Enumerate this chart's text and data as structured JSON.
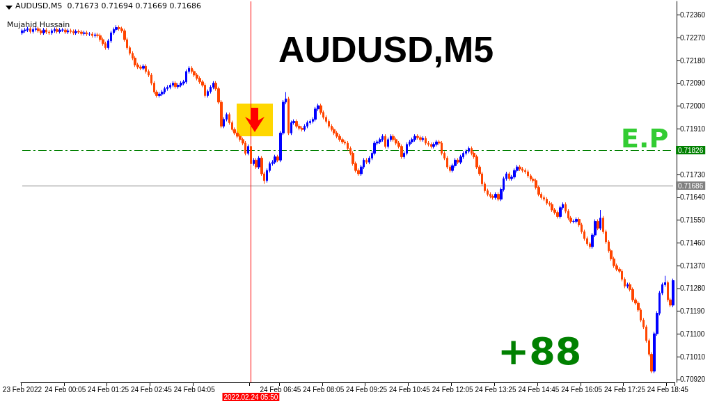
{
  "chart_data": {
    "type": "candlestick",
    "title": "AUDUSD,M5",
    "annotations": [
      "AUDUSD,M5  0.71673 0.71694 0.71669 0.71686",
      "Mujahid Hussain",
      "E.P",
      "+88"
    ],
    "categories": [
      "23 Feb 2022",
      null,
      null,
      null,
      null,
      null,
      null,
      null,
      null,
      null,
      null,
      null,
      null,
      null,
      null,
      null,
      "24 Feb 00:05",
      null,
      null,
      null,
      null,
      null,
      null,
      null,
      null,
      null,
      null,
      null,
      null,
      null,
      null,
      null,
      "24 Feb 01:25",
      null,
      null,
      null,
      null,
      null,
      null,
      null,
      null,
      null,
      null,
      null,
      null,
      null,
      null,
      null,
      "24 Feb 02:45",
      null,
      null,
      null,
      null,
      null,
      null,
      null,
      null,
      null,
      null,
      null,
      null,
      null,
      null,
      null,
      "24 Feb 04:05",
      null,
      null,
      null,
      null,
      null,
      null,
      null,
      null,
      null,
      null,
      null,
      null,
      null,
      null,
      null,
      null,
      null,
      null,
      null,
      null,
      "2022.02.24 05:50",
      null,
      null,
      null,
      null,
      null,
      null,
      null,
      null,
      null,
      null,
      "24 Feb 06:45",
      null,
      null,
      null,
      null,
      null,
      null,
      null,
      null,
      null,
      null,
      null,
      null,
      null,
      null,
      null,
      "24 Feb 08:05",
      null,
      null,
      null,
      null,
      null,
      null,
      null,
      null,
      null,
      null,
      null,
      null,
      null,
      null,
      null,
      "24 Feb 09:25",
      null,
      null,
      null,
      null,
      null,
      null,
      null,
      null,
      null,
      null,
      null,
      null,
      null,
      null,
      null,
      "24 Feb 10:45",
      null,
      null,
      null,
      null,
      null,
      null,
      null,
      null,
      null,
      null,
      null,
      null,
      null,
      null,
      null,
      "24 Feb 12:05",
      null,
      null,
      null,
      null,
      null,
      null,
      null,
      null,
      null,
      null,
      null,
      null,
      null,
      null,
      null,
      "24 Feb 13:25",
      null,
      null,
      null,
      null,
      null,
      null,
      null,
      null,
      null,
      null,
      null,
      null,
      null,
      null,
      null,
      "24 Feb 14:45",
      null,
      null,
      null,
      null,
      null,
      null,
      null,
      null,
      null,
      null,
      null,
      null,
      null,
      null,
      null,
      "24 Feb 16:05",
      null,
      null,
      null,
      null,
      null,
      null,
      null,
      null,
      null,
      null,
      null,
      null,
      null,
      null,
      null,
      "24 Feb 17:25",
      null,
      null,
      null,
      null,
      null,
      null,
      null,
      null,
      null,
      null,
      null,
      null,
      null,
      null,
      null,
      "24 Feb 18:45",
      null,
      null
    ],
    "ylim": [
      0.70909,
      0.72414
    ],
    "yticks": [
      {
        "value": 0.7236,
        "label": "0.72360"
      },
      {
        "value": 0.7227,
        "label": "0.72270"
      },
      {
        "value": 0.7218,
        "label": "0.72180"
      },
      {
        "value": 0.7209,
        "label": "0.72090"
      },
      {
        "value": 0.72,
        "label": "0.72000"
      },
      {
        "value": 0.7191,
        "label": "0.71910"
      },
      {
        "value": 0.7182,
        "label": null
      },
      {
        "value": 0.7173,
        "label": "0.71730"
      },
      {
        "value": 0.7164,
        "label": "0.71640"
      },
      {
        "value": 0.7155,
        "label": "0.71550"
      },
      {
        "value": 0.7146,
        "label": "0.71460"
      },
      {
        "value": 0.7137,
        "label": "0.71370"
      },
      {
        "value": 0.7128,
        "label": "0.71280"
      },
      {
        "value": 0.7119,
        "label": "0.71190"
      },
      {
        "value": 0.711,
        "label": "0.71100"
      },
      {
        "value": 0.7101,
        "label": "0.71010"
      },
      {
        "value": 0.7092,
        "label": "0.70920"
      }
    ],
    "ref_lines": [
      {
        "axis": "y",
        "value": 0.71826,
        "label": "0.71826",
        "color": "#008000",
        "line_style": "dashed"
      },
      {
        "axis": "y",
        "value": 0.71686,
        "label": "0.71686",
        "color": "#808080",
        "line_style": "solid"
      },
      {
        "axis": "x",
        "value": "2022.02.24 05:50",
        "label": null,
        "color": "#ff0000",
        "line_style": "solid"
      }
    ],
    "ohlc": [
      [
        0.7229,
        0.72306,
        0.72282,
        0.72298
      ],
      [
        0.72298,
        0.72309,
        0.7229,
        0.72301
      ],
      [
        0.72301,
        0.72314,
        0.72293,
        0.72306
      ],
      [
        0.72306,
        0.72314,
        0.72287,
        0.72295
      ],
      [
        0.72295,
        0.72311,
        0.72287,
        0.72303
      ],
      [
        0.72303,
        0.72314,
        0.72295,
        0.72306
      ],
      [
        0.72306,
        0.72314,
        0.7229,
        0.72298
      ],
      [
        0.72298,
        0.72306,
        0.72282,
        0.7229
      ],
      [
        0.7229,
        0.72309,
        0.72282,
        0.72301
      ],
      [
        0.72301,
        0.72309,
        0.72285,
        0.72293
      ],
      [
        0.72293,
        0.72301,
        0.72282,
        0.7229
      ],
      [
        0.7229,
        0.72306,
        0.72282,
        0.72298
      ],
      [
        0.72298,
        0.72311,
        0.7229,
        0.72303
      ],
      [
        0.72303,
        0.72311,
        0.72287,
        0.72295
      ],
      [
        0.72295,
        0.72309,
        0.72287,
        0.72301
      ],
      [
        0.72301,
        0.72309,
        0.72293,
        0.72301
      ],
      [
        0.72301,
        0.72309,
        0.72285,
        0.72293
      ],
      [
        0.72293,
        0.72306,
        0.72285,
        0.72298
      ],
      [
        0.72298,
        0.72306,
        0.72287,
        0.72295
      ],
      [
        0.72295,
        0.72303,
        0.72282,
        0.7229
      ],
      [
        0.7229,
        0.72303,
        0.72282,
        0.72295
      ],
      [
        0.72295,
        0.72303,
        0.72285,
        0.72293
      ],
      [
        0.72293,
        0.72301,
        0.72279,
        0.72287
      ],
      [
        0.72287,
        0.72298,
        0.72279,
        0.7229
      ],
      [
        0.7229,
        0.72298,
        0.72277,
        0.72285
      ],
      [
        0.72285,
        0.72293,
        0.72277,
        0.72285
      ],
      [
        0.72285,
        0.72293,
        0.72271,
        0.72279
      ],
      [
        0.72279,
        0.7229,
        0.72271,
        0.72282
      ],
      [
        0.72282,
        0.7229,
        0.72271,
        0.72279
      ],
      [
        0.72279,
        0.72287,
        0.72255,
        0.72263
      ],
      [
        0.72263,
        0.72271,
        0.72239,
        0.72247
      ],
      [
        0.72247,
        0.72255,
        0.72223,
        0.72231
      ],
      [
        0.72231,
        0.72266,
        0.72223,
        0.72258
      ],
      [
        0.72258,
        0.72298,
        0.7225,
        0.7229
      ],
      [
        0.7229,
        0.72311,
        0.72282,
        0.72303
      ],
      [
        0.72303,
        0.7232,
        0.72295,
        0.72311
      ],
      [
        0.72311,
        0.72319,
        0.72298,
        0.72306
      ],
      [
        0.72306,
        0.72314,
        0.7229,
        0.72298
      ],
      [
        0.72298,
        0.72306,
        0.72255,
        0.72263
      ],
      [
        0.72263,
        0.72271,
        0.72223,
        0.72231
      ],
      [
        0.72231,
        0.72239,
        0.72201,
        0.72209
      ],
      [
        0.72209,
        0.72217,
        0.72182,
        0.7219
      ],
      [
        0.7219,
        0.72198,
        0.72155,
        0.72163
      ],
      [
        0.72163,
        0.72171,
        0.72147,
        0.72155
      ],
      [
        0.72155,
        0.72163,
        0.72142,
        0.7215
      ],
      [
        0.7215,
        0.72166,
        0.72142,
        0.72158
      ],
      [
        0.72158,
        0.72166,
        0.72129,
        0.72137
      ],
      [
        0.72137,
        0.72145,
        0.72115,
        0.72123
      ],
      [
        0.72123,
        0.72131,
        0.72083,
        0.72091
      ],
      [
        0.72091,
        0.72099,
        0.72048,
        0.72056
      ],
      [
        0.72056,
        0.72064,
        0.72034,
        0.72042
      ],
      [
        0.72042,
        0.72056,
        0.72034,
        0.72048
      ],
      [
        0.72048,
        0.72064,
        0.7204,
        0.72056
      ],
      [
        0.72056,
        0.72077,
        0.72048,
        0.72069
      ],
      [
        0.72069,
        0.72083,
        0.72061,
        0.72075
      ],
      [
        0.72075,
        0.72091,
        0.72067,
        0.72083
      ],
      [
        0.72083,
        0.72099,
        0.72075,
        0.72091
      ],
      [
        0.72091,
        0.72099,
        0.72069,
        0.72077
      ],
      [
        0.72077,
        0.72091,
        0.72069,
        0.72083
      ],
      [
        0.72083,
        0.72099,
        0.72075,
        0.72091
      ],
      [
        0.72091,
        0.72104,
        0.72083,
        0.72096
      ],
      [
        0.72096,
        0.72145,
        0.72088,
        0.72137
      ],
      [
        0.72137,
        0.72158,
        0.72129,
        0.7215
      ],
      [
        0.7215,
        0.72158,
        0.72129,
        0.72137
      ],
      [
        0.72137,
        0.72145,
        0.72115,
        0.72123
      ],
      [
        0.72123,
        0.72131,
        0.72102,
        0.7211
      ],
      [
        0.7211,
        0.72118,
        0.72088,
        0.72096
      ],
      [
        0.72096,
        0.72104,
        0.72075,
        0.72083
      ],
      [
        0.72083,
        0.72091,
        0.72034,
        0.72042
      ],
      [
        0.72042,
        0.72066,
        0.72034,
        0.72058
      ],
      [
        0.72058,
        0.72083,
        0.7205,
        0.72075
      ],
      [
        0.72075,
        0.72099,
        0.72067,
        0.72091
      ],
      [
        0.72091,
        0.72099,
        0.72061,
        0.72069
      ],
      [
        0.72069,
        0.72077,
        0.72008,
        0.72016
      ],
      [
        0.72016,
        0.72024,
        0.71913,
        0.71921
      ],
      [
        0.71921,
        0.71956,
        0.71913,
        0.71948
      ],
      [
        0.71948,
        0.71975,
        0.7194,
        0.71967
      ],
      [
        0.71967,
        0.71975,
        0.71927,
        0.71935
      ],
      [
        0.71935,
        0.71943,
        0.719,
        0.71908
      ],
      [
        0.71908,
        0.71916,
        0.71886,
        0.71894
      ],
      [
        0.71894,
        0.71902,
        0.71873,
        0.71881
      ],
      [
        0.71881,
        0.71889,
        0.7186,
        0.71868
      ],
      [
        0.71868,
        0.71876,
        0.71846,
        0.71854
      ],
      [
        0.71854,
        0.71862,
        0.71806,
        0.71814
      ],
      [
        0.71814,
        0.71849,
        0.71806,
        0.71841
      ],
      [
        0.71841,
        0.71849,
        0.71765,
        0.71773
      ],
      [
        0.71773,
        0.71795,
        0.71765,
        0.71787
      ],
      [
        0.71787,
        0.71795,
        0.71752,
        0.7176
      ],
      [
        0.7176,
        0.71803,
        0.71752,
        0.71795
      ],
      [
        0.71795,
        0.71803,
        0.71725,
        0.71733
      ],
      [
        0.71733,
        0.71741,
        0.71693,
        0.71706
      ],
      [
        0.71706,
        0.71754,
        0.71698,
        0.71746
      ],
      [
        0.71746,
        0.71781,
        0.71738,
        0.71773
      ],
      [
        0.71773,
        0.71787,
        0.71765,
        0.71779
      ],
      [
        0.71779,
        0.71808,
        0.71771,
        0.718
      ],
      [
        0.718,
        0.71808,
        0.71779,
        0.71787
      ],
      [
        0.71787,
        0.71902,
        0.71779,
        0.71894
      ],
      [
        0.71894,
        0.72024,
        0.71886,
        0.72016
      ],
      [
        0.72016,
        0.72056,
        0.72008,
        0.72029
      ],
      [
        0.72029,
        0.72037,
        0.71886,
        0.71894
      ],
      [
        0.71894,
        0.71943,
        0.71886,
        0.71935
      ],
      [
        0.71935,
        0.71948,
        0.71927,
        0.7194
      ],
      [
        0.7194,
        0.71948,
        0.71913,
        0.71921
      ],
      [
        0.71921,
        0.71929,
        0.71905,
        0.71913
      ],
      [
        0.71913,
        0.71921,
        0.719,
        0.71908
      ],
      [
        0.71908,
        0.71929,
        0.719,
        0.71921
      ],
      [
        0.71921,
        0.71943,
        0.71913,
        0.71935
      ],
      [
        0.71935,
        0.71948,
        0.71927,
        0.7194
      ],
      [
        0.7194,
        0.71956,
        0.71932,
        0.71948
      ],
      [
        0.71948,
        0.71997,
        0.7194,
        0.71989
      ],
      [
        0.71989,
        0.7201,
        0.71981,
        0.72002
      ],
      [
        0.72002,
        0.7201,
        0.71967,
        0.71975
      ],
      [
        0.71975,
        0.71983,
        0.71948,
        0.71956
      ],
      [
        0.71956,
        0.71964,
        0.71932,
        0.7194
      ],
      [
        0.7194,
        0.71948,
        0.71913,
        0.71921
      ],
      [
        0.71921,
        0.71929,
        0.719,
        0.71908
      ],
      [
        0.71908,
        0.71916,
        0.71886,
        0.71894
      ],
      [
        0.71894,
        0.71902,
        0.71873,
        0.71881
      ],
      [
        0.71881,
        0.71889,
        0.7186,
        0.71868
      ],
      [
        0.71868,
        0.71876,
        0.71851,
        0.71859
      ],
      [
        0.71859,
        0.71867,
        0.71846,
        0.71854
      ],
      [
        0.71854,
        0.71862,
        0.71825,
        0.71833
      ],
      [
        0.71833,
        0.71841,
        0.71806,
        0.71814
      ],
      [
        0.71814,
        0.71822,
        0.71765,
        0.71773
      ],
      [
        0.71773,
        0.71781,
        0.71738,
        0.71746
      ],
      [
        0.71746,
        0.71754,
        0.71725,
        0.71733
      ],
      [
        0.71733,
        0.71768,
        0.71725,
        0.7176
      ],
      [
        0.7176,
        0.71795,
        0.71752,
        0.71787
      ],
      [
        0.71787,
        0.71795,
        0.71771,
        0.71779
      ],
      [
        0.71779,
        0.71803,
        0.71771,
        0.71795
      ],
      [
        0.71795,
        0.71822,
        0.71787,
        0.71814
      ],
      [
        0.71814,
        0.71862,
        0.71806,
        0.71854
      ],
      [
        0.71854,
        0.71867,
        0.71846,
        0.71859
      ],
      [
        0.71859,
        0.71876,
        0.71851,
        0.71868
      ],
      [
        0.71868,
        0.71889,
        0.7186,
        0.71881
      ],
      [
        0.71881,
        0.71889,
        0.71833,
        0.71841
      ],
      [
        0.71841,
        0.71876,
        0.71833,
        0.71868
      ],
      [
        0.71868,
        0.71889,
        0.7186,
        0.71881
      ],
      [
        0.71881,
        0.71889,
        0.7186,
        0.71868
      ],
      [
        0.71868,
        0.71876,
        0.71846,
        0.71854
      ],
      [
        0.71854,
        0.71862,
        0.71833,
        0.71841
      ],
      [
        0.71841,
        0.71849,
        0.71792,
        0.718
      ],
      [
        0.718,
        0.71822,
        0.71792,
        0.71814
      ],
      [
        0.71814,
        0.71857,
        0.71806,
        0.71849
      ],
      [
        0.71849,
        0.71867,
        0.71841,
        0.71859
      ],
      [
        0.71859,
        0.71876,
        0.71851,
        0.71868
      ],
      [
        0.71868,
        0.71889,
        0.7186,
        0.71881
      ],
      [
        0.71881,
        0.71889,
        0.71868,
        0.71876
      ],
      [
        0.71876,
        0.71884,
        0.7186,
        0.71868
      ],
      [
        0.71868,
        0.71881,
        0.7186,
        0.71873
      ],
      [
        0.71873,
        0.71881,
        0.71846,
        0.71854
      ],
      [
        0.71854,
        0.71862,
        0.71841,
        0.71849
      ],
      [
        0.71849,
        0.71857,
        0.71833,
        0.71841
      ],
      [
        0.71841,
        0.71857,
        0.71833,
        0.71849
      ],
      [
        0.71849,
        0.71867,
        0.71841,
        0.71859
      ],
      [
        0.71859,
        0.71867,
        0.71846,
        0.71854
      ],
      [
        0.71854,
        0.71862,
        0.71806,
        0.71814
      ],
      [
        0.71814,
        0.71822,
        0.71787,
        0.71795
      ],
      [
        0.71795,
        0.71803,
        0.71752,
        0.7176
      ],
      [
        0.7176,
        0.71768,
        0.71738,
        0.71746
      ],
      [
        0.71746,
        0.71773,
        0.71738,
        0.71765
      ],
      [
        0.71765,
        0.71795,
        0.71757,
        0.71787
      ],
      [
        0.71787,
        0.71795,
        0.71771,
        0.71779
      ],
      [
        0.71779,
        0.71808,
        0.71771,
        0.718
      ],
      [
        0.718,
        0.71822,
        0.71792,
        0.71814
      ],
      [
        0.71814,
        0.7183,
        0.71806,
        0.71822
      ],
      [
        0.71822,
        0.71841,
        0.71814,
        0.71833
      ],
      [
        0.71833,
        0.71841,
        0.71806,
        0.71814
      ],
      [
        0.71814,
        0.71822,
        0.71792,
        0.718
      ],
      [
        0.718,
        0.71808,
        0.71752,
        0.7176
      ],
      [
        0.7176,
        0.71768,
        0.71725,
        0.71733
      ],
      [
        0.71733,
        0.71741,
        0.71685,
        0.71693
      ],
      [
        0.71693,
        0.71701,
        0.71658,
        0.71666
      ],
      [
        0.71666,
        0.71674,
        0.71644,
        0.71652
      ],
      [
        0.71652,
        0.7166,
        0.71636,
        0.71644
      ],
      [
        0.71644,
        0.71652,
        0.71631,
        0.71639
      ],
      [
        0.71639,
        0.7166,
        0.71631,
        0.71652
      ],
      [
        0.71652,
        0.7166,
        0.71625,
        0.71633
      ],
      [
        0.71633,
        0.71679,
        0.71625,
        0.71671
      ],
      [
        0.71671,
        0.71722,
        0.71663,
        0.71714
      ],
      [
        0.71714,
        0.71741,
        0.71706,
        0.71733
      ],
      [
        0.71733,
        0.71741,
        0.71706,
        0.71714
      ],
      [
        0.71714,
        0.71728,
        0.71706,
        0.7172
      ],
      [
        0.7172,
        0.71754,
        0.71712,
        0.71746
      ],
      [
        0.71746,
        0.71768,
        0.71738,
        0.7176
      ],
      [
        0.7176,
        0.71768,
        0.71744,
        0.71752
      ],
      [
        0.71752,
        0.7176,
        0.71738,
        0.71746
      ],
      [
        0.71746,
        0.71754,
        0.71733,
        0.71741
      ],
      [
        0.71741,
        0.71749,
        0.71717,
        0.71725
      ],
      [
        0.71725,
        0.71733,
        0.71704,
        0.71712
      ],
      [
        0.71712,
        0.7172,
        0.71698,
        0.71706
      ],
      [
        0.71706,
        0.71714,
        0.71671,
        0.71679
      ],
      [
        0.71679,
        0.71687,
        0.71644,
        0.71652
      ],
      [
        0.71652,
        0.7166,
        0.71631,
        0.71639
      ],
      [
        0.71639,
        0.71647,
        0.71625,
        0.71633
      ],
      [
        0.71633,
        0.71641,
        0.71609,
        0.71617
      ],
      [
        0.71617,
        0.71625,
        0.71604,
        0.71612
      ],
      [
        0.71612,
        0.7162,
        0.71582,
        0.7159
      ],
      [
        0.7159,
        0.71598,
        0.71572,
        0.7158
      ],
      [
        0.7158,
        0.71588,
        0.71556,
        0.71564
      ],
      [
        0.71564,
        0.71607,
        0.71556,
        0.71599
      ],
      [
        0.71599,
        0.7162,
        0.71591,
        0.71612
      ],
      [
        0.71612,
        0.7162,
        0.71577,
        0.71585
      ],
      [
        0.71585,
        0.71593,
        0.7155,
        0.71558
      ],
      [
        0.71558,
        0.71566,
        0.71537,
        0.71545
      ],
      [
        0.71545,
        0.71553,
        0.71537,
        0.71545
      ],
      [
        0.71545,
        0.71561,
        0.71537,
        0.71553
      ],
      [
        0.71553,
        0.71561,
        0.71523,
        0.71531
      ],
      [
        0.71531,
        0.71539,
        0.71496,
        0.71504
      ],
      [
        0.71504,
        0.71512,
        0.71469,
        0.71477
      ],
      [
        0.71477,
        0.71485,
        0.71448,
        0.71456
      ],
      [
        0.71456,
        0.71464,
        0.71437,
        0.71445
      ],
      [
        0.71445,
        0.71499,
        0.71437,
        0.71491
      ],
      [
        0.71491,
        0.71553,
        0.71483,
        0.71545
      ],
      [
        0.71545,
        0.71553,
        0.7151,
        0.71518
      ],
      [
        0.71518,
        0.7159,
        0.7151,
        0.71558
      ],
      [
        0.71558,
        0.71566,
        0.71496,
        0.71504
      ],
      [
        0.71504,
        0.71512,
        0.71456,
        0.71464
      ],
      [
        0.71464,
        0.71472,
        0.71421,
        0.71429
      ],
      [
        0.71429,
        0.71437,
        0.71389,
        0.71397
      ],
      [
        0.71397,
        0.71405,
        0.71362,
        0.7137
      ],
      [
        0.7137,
        0.71378,
        0.71348,
        0.71356
      ],
      [
        0.71356,
        0.71364,
        0.7134,
        0.71348
      ],
      [
        0.71348,
        0.71356,
        0.71308,
        0.71316
      ],
      [
        0.71316,
        0.71324,
        0.71281,
        0.71289
      ],
      [
        0.71289,
        0.71303,
        0.71281,
        0.71295
      ],
      [
        0.71295,
        0.71303,
        0.71268,
        0.71276
      ],
      [
        0.71276,
        0.71284,
        0.71227,
        0.71235
      ],
      [
        0.71235,
        0.71243,
        0.71214,
        0.71222
      ],
      [
        0.71222,
        0.7123,
        0.71187,
        0.71195
      ],
      [
        0.71195,
        0.71203,
        0.71147,
        0.71155
      ],
      [
        0.71155,
        0.71163,
        0.7112,
        0.71128
      ],
      [
        0.71128,
        0.71136,
        0.71066,
        0.71074
      ],
      [
        0.71074,
        0.71082,
        0.71012,
        0.7102
      ],
      [
        0.7102,
        0.71028,
        0.70945,
        0.70953
      ],
      [
        0.70953,
        0.71109,
        0.70945,
        0.71101
      ],
      [
        0.71101,
        0.7119,
        0.71093,
        0.71182
      ],
      [
        0.71182,
        0.7127,
        0.71174,
        0.71262
      ],
      [
        0.71262,
        0.71303,
        0.71254,
        0.71295
      ],
      [
        0.71295,
        0.7133,
        0.71287,
        0.71303
      ],
      [
        0.71303,
        0.71311,
        0.71227,
        0.71235
      ],
      [
        0.71235,
        0.71243,
        0.71206,
        0.71214
      ],
      [
        0.71214,
        0.71319,
        0.71206,
        0.71311
      ]
    ]
  }
}
